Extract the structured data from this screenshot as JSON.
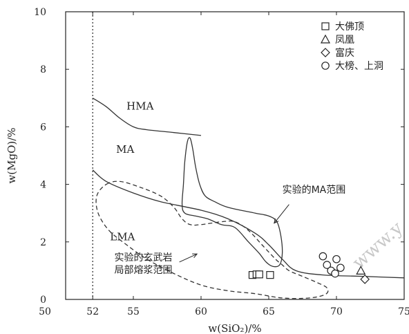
{
  "chart_data": {
    "type": "scatter",
    "xlabel": "w(SiO₂)/%",
    "ylabel": "w(MgO)/%",
    "xlim": [
      50,
      75
    ],
    "ylim": [
      0,
      10
    ],
    "x_ticks": [
      50,
      52,
      55,
      60,
      65,
      70,
      75
    ],
    "y_ticks": [
      0,
      2,
      4,
      6,
      8,
      10
    ],
    "legend": "top-right",
    "grid": false,
    "series": [
      {
        "name": "大佛顶",
        "marker": "square",
        "points": [
          [
            63.8,
            0.85
          ],
          [
            64.1,
            0.87
          ],
          [
            64.3,
            0.87
          ],
          [
            65.1,
            0.85
          ]
        ]
      },
      {
        "name": "凤凰",
        "marker": "triangle",
        "points": [
          [
            71.8,
            1.0
          ]
        ]
      },
      {
        "name": "富庆",
        "marker": "diamond",
        "points": [
          [
            72.1,
            0.7
          ]
        ]
      },
      {
        "name": "大榜、上洞",
        "marker": "circle",
        "points": [
          [
            69.0,
            1.5
          ],
          [
            69.3,
            1.2
          ],
          [
            69.6,
            1.0
          ],
          [
            69.9,
            0.9
          ],
          [
            70.0,
            1.4
          ],
          [
            70.3,
            1.1
          ]
        ]
      }
    ],
    "boundaries": [
      {
        "id": "upper",
        "points": [
          [
            52,
            7.0
          ],
          [
            53,
            6.7
          ],
          [
            54,
            6.3
          ],
          [
            55,
            6.0
          ],
          [
            56,
            5.9
          ],
          [
            58,
            5.8
          ],
          [
            60,
            5.7
          ]
        ]
      },
      {
        "id": "lower",
        "points": [
          [
            52,
            4.5
          ],
          [
            53,
            4.1
          ],
          [
            55,
            3.7
          ],
          [
            57,
            3.4
          ],
          [
            60,
            3.1
          ],
          [
            62,
            2.8
          ],
          [
            64,
            2.3
          ],
          [
            65,
            1.9
          ],
          [
            66,
            1.4
          ],
          [
            67,
            1.0
          ],
          [
            69,
            0.85
          ],
          [
            72,
            0.8
          ],
          [
            75,
            0.75
          ]
        ]
      }
    ],
    "regions": [
      {
        "id": "experimental-ma",
        "style": "solid",
        "points": [
          [
            59.2,
            5.6
          ],
          [
            59.4,
            5.2
          ],
          [
            59.6,
            4.6
          ],
          [
            59.9,
            4.0
          ],
          [
            60.3,
            3.6
          ],
          [
            61.0,
            3.4
          ],
          [
            62.0,
            3.2
          ],
          [
            64.0,
            3.0
          ],
          [
            65.0,
            2.9
          ],
          [
            65.6,
            2.7
          ],
          [
            65.9,
            2.2
          ],
          [
            66.0,
            1.6
          ],
          [
            65.8,
            1.2
          ],
          [
            65.3,
            1.15
          ],
          [
            64.8,
            1.3
          ],
          [
            64.3,
            1.6
          ],
          [
            63.5,
            2.0
          ],
          [
            62.5,
            2.5
          ],
          [
            61.5,
            2.6
          ],
          [
            60.5,
            2.8
          ],
          [
            59.6,
            2.9
          ],
          [
            58.8,
            3.0
          ],
          [
            58.6,
            3.3
          ],
          [
            58.7,
            4.0
          ],
          [
            58.8,
            4.8
          ],
          [
            59.0,
            5.5
          ],
          [
            59.2,
            5.6
          ]
        ]
      },
      {
        "id": "experimental-basalt-melt",
        "style": "dashed",
        "points": [
          [
            53.0,
            4.0
          ],
          [
            54.0,
            4.1
          ],
          [
            55.5,
            3.9
          ],
          [
            57.0,
            3.6
          ],
          [
            58.0,
            3.2
          ],
          [
            58.6,
            2.8
          ],
          [
            59.2,
            2.6
          ],
          [
            60.0,
            2.6
          ],
          [
            61.5,
            2.7
          ],
          [
            62.5,
            2.7
          ],
          [
            63.5,
            2.4
          ],
          [
            64.5,
            1.9
          ],
          [
            65.5,
            1.4
          ],
          [
            66.0,
            1.2
          ],
          [
            66.5,
            1.0
          ],
          [
            67.5,
            0.8
          ],
          [
            68.5,
            0.6
          ],
          [
            69.3,
            0.4
          ],
          [
            69.2,
            0.18
          ],
          [
            68.0,
            0.05
          ],
          [
            66.0,
            0.05
          ],
          [
            64.0,
            0.2
          ],
          [
            62.0,
            0.3
          ],
          [
            60.0,
            0.5
          ],
          [
            58.0,
            0.9
          ],
          [
            56.0,
            1.4
          ],
          [
            54.5,
            1.9
          ],
          [
            53.2,
            2.4
          ],
          [
            52.4,
            3.0
          ],
          [
            52.3,
            3.6
          ],
          [
            53.0,
            4.0
          ]
        ]
      }
    ],
    "reference_lines": [
      {
        "axis": "x",
        "value": 52,
        "style": "dotted"
      }
    ],
    "region_labels": [
      {
        "id": "hma",
        "text": "HMA",
        "x": 55.5,
        "y": 6.6
      },
      {
        "id": "ma",
        "text": "MA",
        "x": 54.4,
        "y": 5.1
      },
      {
        "id": "lma",
        "text": "LMA",
        "x": 54.2,
        "y": 2.05
      }
    ],
    "annotations": [
      {
        "id": "ma-range",
        "lines": [
          "实验的MA范围"
        ],
        "x": 66.0,
        "y": 3.7,
        "arrow_from": [
          66.5,
          3.3
        ],
        "arrow_to": [
          65.4,
          2.65
        ]
      },
      {
        "id": "melt-range",
        "lines": [
          "实验的玄武岩",
          "局部熔浆范围"
        ],
        "x": 53.6,
        "y": 1.35,
        "arrow_from": [
          58.4,
          1.3
        ],
        "arrow_to": [
          59.7,
          1.58
        ]
      }
    ],
    "watermark": "www.y"
  }
}
